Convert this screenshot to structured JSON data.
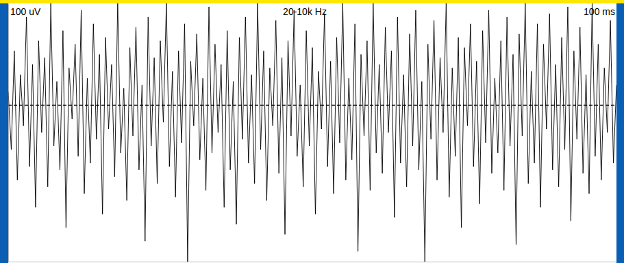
{
  "chart_data": {
    "type": "line",
    "annotations": [
      "100 uV",
      "20-10k Hz",
      "100 ms"
    ],
    "xlim": [
      0,
      100
    ],
    "ylim": [
      -230,
      150
    ],
    "tick_labels": false,
    "baseline": 0,
    "x": [
      0,
      0.5,
      1,
      1.5,
      2,
      2.5,
      3,
      3.5,
      4,
      4.5,
      5,
      5.5,
      6,
      6.5,
      7,
      7.5,
      8,
      8.5,
      9,
      9.5,
      10,
      10.5,
      11,
      11.5,
      12,
      12.5,
      13,
      13.5,
      14,
      14.5,
      15,
      15.5,
      16,
      16.5,
      17,
      17.5,
      18,
      18.5,
      19,
      19.5,
      20,
      20.5,
      21,
      21.5,
      22,
      22.5,
      23,
      23.5,
      24,
      24.5,
      25,
      25.5,
      26,
      26.5,
      27,
      27.5,
      28,
      28.5,
      29,
      29.5,
      30,
      30.5,
      31,
      31.5,
      32,
      32.5,
      33,
      33.5,
      34,
      34.5,
      35,
      35.5,
      36,
      36.5,
      37,
      37.5,
      38,
      38.5,
      39,
      39.5,
      40,
      40.5,
      41,
      41.5,
      42,
      42.5,
      43,
      43.5,
      44,
      44.5,
      45,
      45.5,
      46,
      46.5,
      47,
      47.5,
      48,
      48.5,
      49,
      49.5,
      50,
      50.5,
      51,
      51.5,
      52,
      52.5,
      53,
      53.5,
      54,
      54.5,
      55,
      55.5,
      56,
      56.5,
      57,
      57.5,
      58,
      58.5,
      59,
      59.5,
      60,
      60.5,
      61,
      61.5,
      62,
      62.5,
      63,
      63.5,
      64,
      64.5,
      65,
      65.5,
      66,
      66.5,
      67,
      67.5,
      68,
      68.5,
      69,
      69.5,
      70,
      70.5,
      71,
      71.5,
      72,
      72.5,
      73,
      73.5,
      74,
      74.5,
      75,
      75.5,
      76,
      76.5,
      77,
      77.5,
      78,
      78.5,
      79,
      79.5,
      80,
      80.5,
      81,
      81.5,
      82,
      82.5,
      83,
      83.5,
      84,
      84.5,
      85,
      85.5,
      86,
      86.5,
      87,
      87.5,
      88,
      88.5,
      89,
      89.5,
      90,
      90.5,
      91,
      91.5,
      92,
      92.5,
      93,
      93.5,
      94,
      94.5,
      95,
      95.5,
      96,
      96.5,
      97,
      97.5,
      98,
      98.5,
      99,
      99.5,
      100
    ],
    "series": [
      {
        "color": "#000000",
        "values": [
          20,
          -65,
          80,
          -110,
          45,
          -30,
          130,
          -90,
          60,
          -150,
          95,
          -40,
          70,
          -120,
          150,
          -60,
          35,
          -95,
          110,
          -180,
          55,
          -20,
          90,
          -75,
          140,
          -130,
          40,
          -85,
          120,
          -50,
          75,
          -160,
          100,
          -35,
          60,
          -105,
          150,
          -70,
          25,
          -140,
          85,
          -45,
          115,
          -95,
          30,
          -200,
          130,
          -60,
          70,
          -115,
          95,
          -25,
          150,
          -90,
          50,
          -135,
          80,
          -55,
          120,
          -230,
          65,
          -30,
          105,
          -80,
          40,
          -125,
          145,
          -70,
          90,
          -40,
          60,
          -150,
          110,
          -95,
          35,
          -175,
          100,
          -50,
          130,
          -85,
          45,
          -115,
          150,
          -65,
          80,
          -140,
          55,
          -30,
          125,
          -100,
          70,
          -190,
          95,
          -45,
          140,
          -75,
          30,
          -120,
          110,
          -60,
          85,
          -160,
          50,
          -35,
          135,
          -90,
          65,
          -130,
          100,
          -55,
          150,
          -110,
          40,
          -80,
          120,
          -215,
          75,
          -45,
          95,
          -125,
          150,
          -70,
          60,
          -100,
          115,
          -40,
          80,
          -165,
          130,
          -85,
          45,
          -120,
          105,
          -60,
          140,
          -95,
          35,
          -230,
          90,
          -50,
          125,
          -110,
          70,
          -40,
          150,
          -135,
          55,
          -75,
          100,
          -180,
          85,
          -30,
          120,
          -90,
          65,
          -145,
          110,
          -55,
          140,
          -100,
          40,
          -70,
          95,
          -125,
          130,
          -60,
          75,
          -205,
          105,
          -45,
          150,
          -115,
          50,
          -85,
          120,
          -150,
          90,
          -35,
          135,
          -95,
          60,
          -120,
          100,
          -65,
          145,
          -170,
          80,
          -50,
          115,
          -100,
          45,
          -130,
          150,
          -75,
          90,
          -110,
          55,
          -40,
          125,
          -85,
          30
        ]
      }
    ]
  }
}
